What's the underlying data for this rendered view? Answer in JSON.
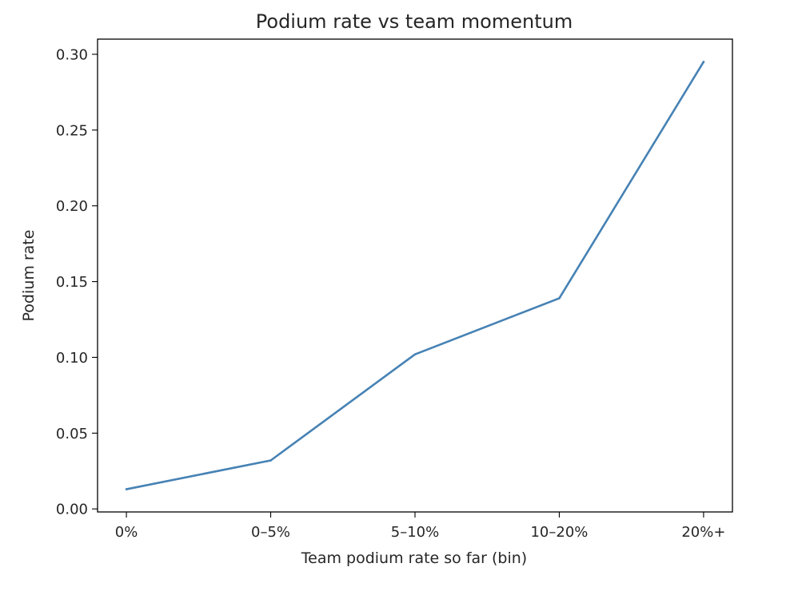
{
  "chart_data": {
    "type": "line",
    "title": "Podium rate vs team momentum",
    "xlabel": "Team podium rate so far (bin)",
    "ylabel": "Podium rate",
    "categories": [
      "0%",
      "0–5%",
      "5–10%",
      "10–20%",
      "20%+"
    ],
    "series": [
      {
        "values": [
          0.013,
          0.032,
          0.102,
          0.139,
          0.295
        ],
        "color": "#4682b4"
      }
    ],
    "ylim": [
      -0.002,
      0.31
    ],
    "yticks": [
      0.0,
      0.05,
      0.1,
      0.15,
      0.2,
      0.25,
      0.3
    ],
    "ytick_labels": [
      "0.00",
      "0.05",
      "0.10",
      "0.15",
      "0.20",
      "0.25",
      "0.30"
    ],
    "grid": false,
    "legend": "none"
  }
}
